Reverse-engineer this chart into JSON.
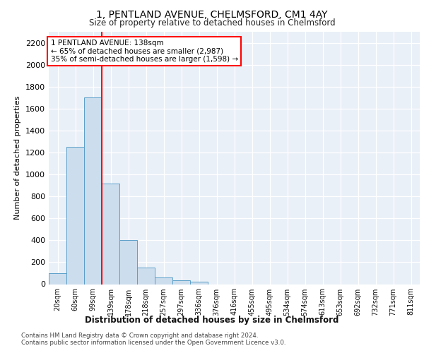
{
  "title_line1": "1, PENTLAND AVENUE, CHELMSFORD, CM1 4AY",
  "title_line2": "Size of property relative to detached houses in Chelmsford",
  "xlabel": "Distribution of detached houses by size in Chelmsford",
  "ylabel": "Number of detached properties",
  "bar_labels": [
    "20sqm",
    "60sqm",
    "99sqm",
    "139sqm",
    "178sqm",
    "218sqm",
    "257sqm",
    "297sqm",
    "336sqm",
    "376sqm",
    "416sqm",
    "455sqm",
    "495sqm",
    "534sqm",
    "574sqm",
    "613sqm",
    "653sqm",
    "692sqm",
    "732sqm",
    "771sqm",
    "811sqm"
  ],
  "bar_values": [
    100,
    1250,
    1700,
    920,
    400,
    150,
    62,
    35,
    20,
    0,
    0,
    0,
    0,
    0,
    0,
    0,
    0,
    0,
    0,
    0,
    0
  ],
  "bar_color": "#ccdded",
  "bar_edge_color": "#5b9fc9",
  "red_line_x": 2.5,
  "ylim_max": 2300,
  "yticks": [
    0,
    200,
    400,
    600,
    800,
    1000,
    1200,
    1400,
    1600,
    1800,
    2000,
    2200
  ],
  "annotation_title": "1 PENTLAND AVENUE: 138sqm",
  "annotation_line2": "← 65% of detached houses are smaller (2,987)",
  "annotation_line3": "35% of semi-detached houses are larger (1,598) →",
  "footer_line1": "Contains HM Land Registry data © Crown copyright and database right 2024.",
  "footer_line2": "Contains public sector information licensed under the Open Government Licence v3.0.",
  "plot_bg_color": "#eaf0f7"
}
